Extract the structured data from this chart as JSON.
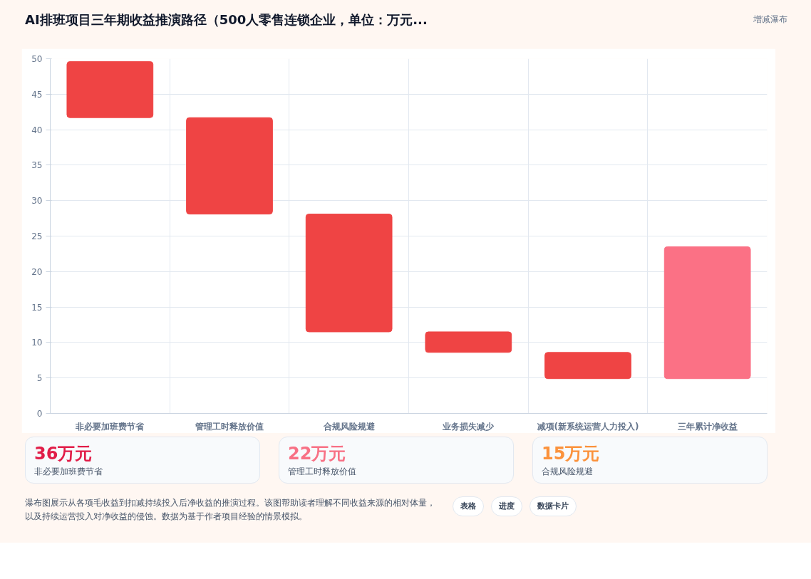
{
  "chart_data": {
    "type": "bar",
    "title": "AI排班项目三年期收益推演路径（500人零售连锁企业，单位：万元...",
    "categories": [
      "非必要加班费节省",
      "管理工时释放价值",
      "合规风险规避",
      "业务损失减少",
      "减项(新系统运营人力投入)",
      "三年累计净收益"
    ],
    "values": [
      7.9,
      13.6,
      16.6,
      2.9,
      3.7,
      18.6
    ],
    "base": [
      41.7,
      28.1,
      11.5,
      8.6,
      4.9,
      4.9
    ],
    "colors": [
      "#ef4444",
      "#ef4444",
      "#ef4444",
      "#ef4444",
      "#ef4444",
      "#fb7185"
    ],
    "ylim": [
      0,
      50
    ],
    "yticks": [
      0,
      5,
      10,
      15,
      20,
      25,
      30,
      35,
      40,
      45,
      50
    ],
    "grid": true,
    "annotations": [
      "增减瀑布",
      "36万元",
      "非必要加班费节省",
      "22万元",
      "管理工时释放价值",
      "15万元",
      "合规风险规避",
      "瀑布图展示从各项毛收益到扣减持续投入后净收益的推演过程。该图帮助读者理解不同收益来源的相对体量，以及持续运营投入对净收益的侵蚀。数据为基于作者项目经验的情景模拟。",
      "表格",
      "进度",
      "数据卡片"
    ]
  }
}
